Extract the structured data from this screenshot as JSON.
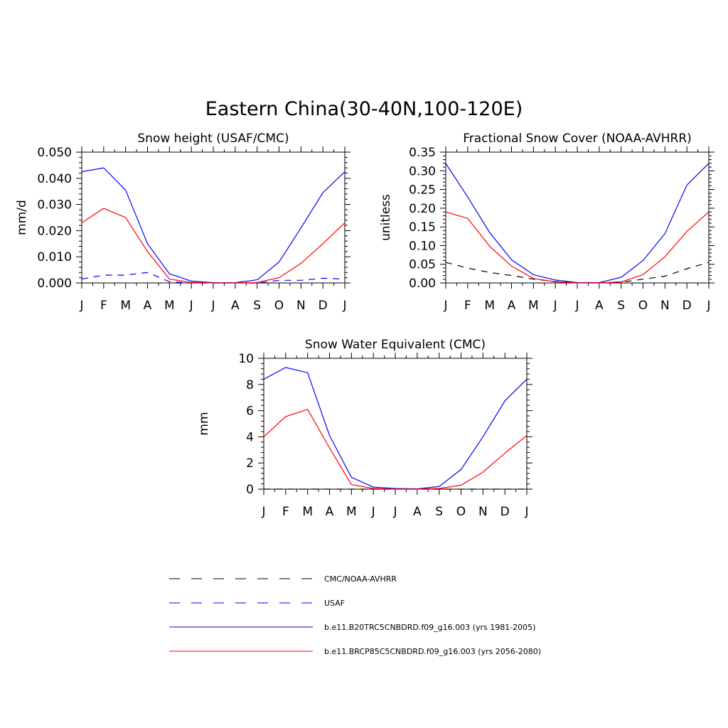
{
  "figure": {
    "title": "Eastern China(30-40N,100-120E)"
  },
  "legend": {
    "placement": "bottom-center",
    "items": [
      {
        "label": "CMC/NOAA-AVHRR",
        "color": "#000000",
        "dash": true
      },
      {
        "label": "USAF",
        "color": "#0000ff",
        "dash": true
      },
      {
        "label": "b.e11.B20TRC5CNBDRD.f09_g16.003 (yrs 1981-2005)",
        "color": "#0000ff",
        "dash": false
      },
      {
        "label": "b.e11.BRCP85C5CNBDRD.f09_g16.003 (yrs 2056-2080)",
        "color": "#ff0000",
        "dash": false
      }
    ]
  },
  "chart_data": [
    {
      "type": "line",
      "title": "Snow height (USAF/CMC)",
      "ylabel": "mm/d",
      "xlabel": "",
      "categories": [
        "J",
        "F",
        "M",
        "A",
        "M",
        "J",
        "J",
        "A",
        "S",
        "O",
        "N",
        "D",
        "J"
      ],
      "ylim": [
        0,
        0.05
      ],
      "yticks": [
        "0.000",
        "0.010",
        "0.020",
        "0.030",
        "0.040",
        "0.050"
      ],
      "ytick_values": [
        0,
        0.01,
        0.02,
        0.03,
        0.04,
        0.05
      ],
      "grid": false,
      "series": [
        {
          "name": "USAF",
          "color": "#0000ff",
          "dash": true,
          "values": [
            0.0015,
            0.003,
            0.003,
            0.004,
            0.0005,
            0.0,
            0.0,
            0.0,
            0.0,
            0.001,
            0.001,
            0.0018,
            0.0015
          ]
        },
        {
          "name": "b.e11.B20TRC5CNBDRD.f09_g16.003 (yrs 1981-2005)",
          "color": "#0000ff",
          "dash": false,
          "values": [
            0.0425,
            0.044,
            0.0355,
            0.015,
            0.0035,
            0.0007,
            0.0001,
            0.0001,
            0.0012,
            0.008,
            0.021,
            0.0345,
            0.0425
          ]
        },
        {
          "name": "b.e11.BRCP85C5CNBDRD.f09_g16.003 (yrs 2056-2080)",
          "color": "#ff0000",
          "dash": false,
          "values": [
            0.023,
            0.0285,
            0.025,
            0.012,
            0.0015,
            0.0002,
            0.0,
            0.0,
            0.0002,
            0.002,
            0.0075,
            0.015,
            0.023
          ]
        }
      ]
    },
    {
      "type": "line",
      "title": "Fractional Snow Cover (NOAA-AVHRR)",
      "ylabel": "unitless",
      "xlabel": "",
      "categories": [
        "J",
        "F",
        "M",
        "A",
        "M",
        "J",
        "J",
        "A",
        "S",
        "O",
        "N",
        "D",
        "J"
      ],
      "ylim": [
        0,
        0.35
      ],
      "yticks": [
        "0.00",
        "0.05",
        "0.10",
        "0.15",
        "0.20",
        "0.25",
        "0.30",
        "0.35"
      ],
      "ytick_values": [
        0,
        0.05,
        0.1,
        0.15,
        0.2,
        0.25,
        0.3,
        0.35
      ],
      "grid": false,
      "series": [
        {
          "name": "CMC/NOAA-AVHRR",
          "color": "#000000",
          "dash": true,
          "values": [
            0.055,
            0.04,
            0.028,
            0.02,
            0.01,
            0.004,
            0.001,
            0.0,
            0.002,
            0.01,
            0.018,
            0.038,
            0.055
          ]
        },
        {
          "name": "b.e11.B20TRC5CNBDRD.f09_g16.003 (yrs 1981-2005)",
          "color": "#0000ff",
          "dash": false,
          "values": [
            0.32,
            0.23,
            0.135,
            0.062,
            0.022,
            0.008,
            0.001,
            0.001,
            0.015,
            0.06,
            0.132,
            0.262,
            0.32
          ]
        },
        {
          "name": "b.e11.BRCP85C5CNBDRD.f09_g16.003 (yrs 2056-2080)",
          "color": "#ff0000",
          "dash": false,
          "values": [
            0.19,
            0.173,
            0.098,
            0.045,
            0.012,
            0.003,
            0.0,
            0.0,
            0.003,
            0.022,
            0.07,
            0.138,
            0.19
          ]
        }
      ]
    },
    {
      "type": "line",
      "title": "Snow Water Equivalent (CMC)",
      "ylabel": "mm",
      "xlabel": "",
      "categories": [
        "J",
        "F",
        "M",
        "A",
        "M",
        "J",
        "J",
        "A",
        "S",
        "O",
        "N",
        "D",
        "J"
      ],
      "ylim": [
        0,
        10
      ],
      "yticks": [
        "0",
        "2",
        "4",
        "6",
        "8",
        "10"
      ],
      "ytick_values": [
        0,
        2,
        4,
        6,
        8,
        10
      ],
      "grid": false,
      "series": [
        {
          "name": "CMC/NOAA-AVHRR",
          "color": "#000000",
          "dash": true,
          "values": [
            0,
            0,
            0,
            0,
            0,
            0,
            0,
            0,
            0,
            0,
            0,
            0,
            0
          ]
        },
        {
          "name": "b.e11.B20TRC5CNBDRD.f09_g16.003 (yrs 1981-2005)",
          "color": "#0000ff",
          "dash": false,
          "values": [
            8.4,
            9.3,
            8.9,
            4.1,
            0.9,
            0.15,
            0.05,
            0.02,
            0.2,
            1.5,
            4.0,
            6.75,
            8.4
          ]
        },
        {
          "name": "b.e11.BRCP85C5CNBDRD.f09_g16.003 (yrs 2056-2080)",
          "color": "#ff0000",
          "dash": false,
          "values": [
            4.0,
            5.55,
            6.1,
            3.15,
            0.35,
            0.05,
            0.0,
            0.0,
            0.05,
            0.3,
            1.3,
            2.75,
            4.1
          ]
        }
      ]
    }
  ]
}
